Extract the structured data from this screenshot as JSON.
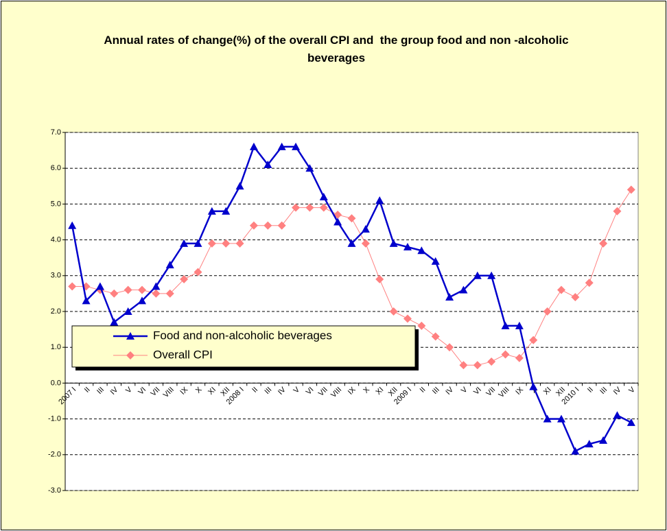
{
  "chart_data": {
    "type": "line",
    "title": "Annual rates of change(%) of the overall CPI and  the group food and non -alcoholic beverages",
    "categories": [
      "2007 I",
      "II",
      "III",
      "IV",
      "V",
      "VI",
      "VII",
      "VIII",
      "IX",
      "X",
      "XI",
      "XII",
      "2008 I",
      "II",
      "III",
      "IV",
      "V",
      "VI",
      "VII",
      "VIII",
      "IX",
      "X",
      "XI",
      "XII",
      "2009 I",
      "II",
      "III",
      "IV",
      "V",
      "VI",
      "VII",
      "VIII",
      "IX",
      "X",
      "XI",
      "XII",
      "2010 I",
      "II",
      "III",
      "IV",
      "V"
    ],
    "series": [
      {
        "name": "Food and non-alcoholic beverages",
        "color": "#0000cc",
        "marker": "triangle",
        "values": [
          4.4,
          2.3,
          2.7,
          1.7,
          2.0,
          2.3,
          2.7,
          3.3,
          3.9,
          3.9,
          4.8,
          4.8,
          5.5,
          6.6,
          6.1,
          6.6,
          6.6,
          6.0,
          5.2,
          4.5,
          3.9,
          4.3,
          5.1,
          3.9,
          3.8,
          3.7,
          3.4,
          2.4,
          2.6,
          3.0,
          3.0,
          1.6,
          1.6,
          -0.1,
          -1.0,
          -1.0,
          -1.9,
          -1.7,
          -1.6,
          -0.9,
          -1.1
        ]
      },
      {
        "name": "Overall CPI",
        "color": "#ff8080",
        "marker": "diamond",
        "values": [
          2.7,
          2.7,
          2.6,
          2.5,
          2.6,
          2.6,
          2.5,
          2.5,
          2.9,
          3.1,
          3.9,
          3.9,
          3.9,
          4.4,
          4.4,
          4.4,
          4.9,
          4.9,
          4.9,
          4.7,
          4.6,
          3.9,
          2.9,
          2.0,
          1.8,
          1.6,
          1.3,
          1.0,
          0.5,
          0.5,
          0.6,
          0.8,
          0.7,
          1.2,
          2.0,
          2.6,
          2.4,
          2.8,
          3.9,
          4.8,
          5.4
        ]
      }
    ],
    "ylim": [
      -3,
      7
    ],
    "yticks": [
      {
        "value": -3,
        "label": "-3.0"
      },
      {
        "value": -2,
        "label": "-2.0"
      },
      {
        "value": -1,
        "label": "-1.0"
      },
      {
        "value": 0,
        "label": "0.0"
      },
      {
        "value": 1,
        "label": "1.0"
      },
      {
        "value": 2,
        "label": "2.0"
      },
      {
        "value": 3,
        "label": "3.0"
      },
      {
        "value": 4,
        "label": "4.0"
      },
      {
        "value": 5,
        "label": "5.0"
      },
      {
        "value": 6,
        "label": "6.0"
      },
      {
        "value": 7,
        "label": "7.0"
      }
    ],
    "grid": true
  }
}
